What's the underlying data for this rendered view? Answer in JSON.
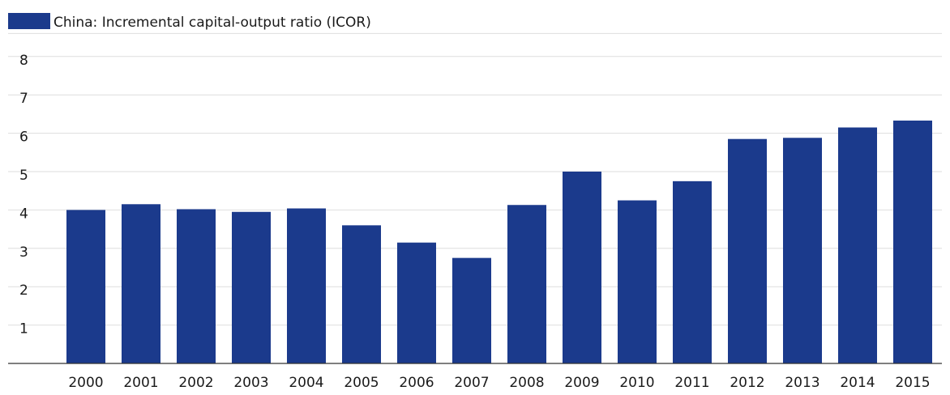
{
  "chart_data": {
    "type": "bar",
    "categories": [
      "2000",
      "2001",
      "2002",
      "2003",
      "2004",
      "2005",
      "2006",
      "2007",
      "2008",
      "2009",
      "2010",
      "2011",
      "2012",
      "2013",
      "2014",
      "2015"
    ],
    "series": [
      {
        "name": "China: Incremental capital-output ratio (ICOR)",
        "color": "#1b3a8c",
        "values": [
          4.0,
          4.15,
          4.02,
          3.95,
          4.04,
          3.6,
          3.15,
          2.75,
          4.13,
          5.0,
          4.25,
          4.75,
          5.85,
          5.88,
          6.15,
          6.33
        ]
      }
    ],
    "yticks": [
      1,
      2,
      3,
      4,
      5,
      6,
      7,
      8
    ],
    "ylim": [
      0,
      8.6
    ],
    "grid": true,
    "legend": "top-left",
    "title": "",
    "xlabel": "",
    "ylabel": ""
  }
}
